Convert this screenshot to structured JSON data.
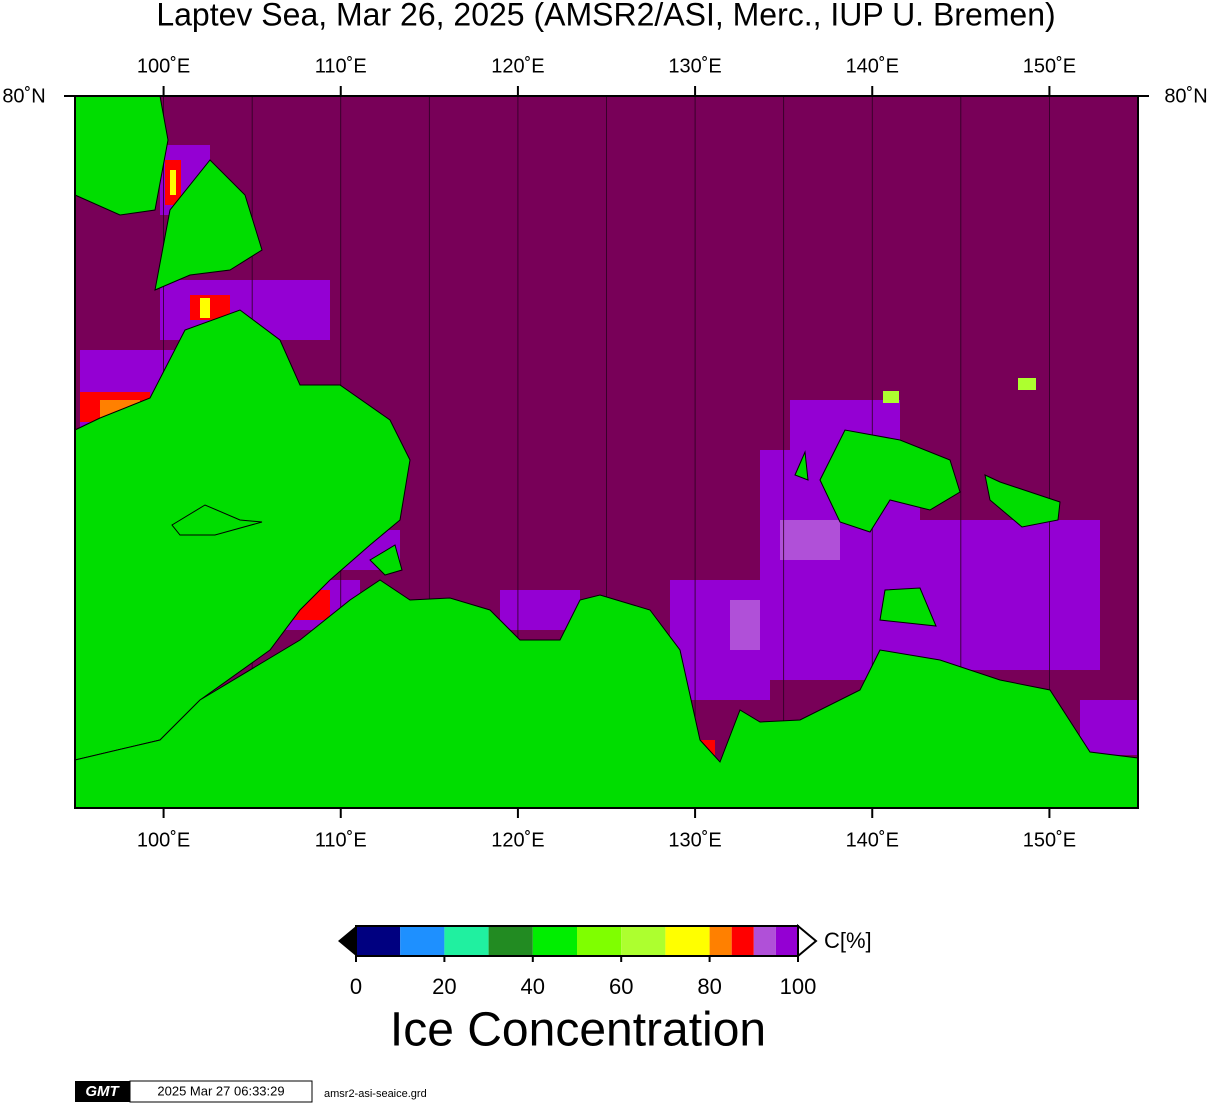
{
  "title": "Laptev Sea, Mar 26, 2025 (AMSR2/ASI, Merc., IUP U. Bremen)",
  "map": {
    "lonlim": [
      95,
      155
    ],
    "lon_ticks": [
      {
        "value": 100,
        "label": "100˚E"
      },
      {
        "value": 110,
        "label": "110˚E"
      },
      {
        "value": 120,
        "label": "120˚E"
      },
      {
        "value": 130,
        "label": "130˚E"
      },
      {
        "value": 140,
        "label": "140˚E"
      },
      {
        "value": 150,
        "label": "150˚E"
      }
    ],
    "gridlines": [
      100,
      105,
      110,
      115,
      120,
      125,
      130,
      135,
      140,
      145,
      150
    ],
    "lat_label": "80˚N"
  },
  "colorbar": {
    "unit": "C[%]",
    "lim": [
      0,
      100
    ],
    "ticks": [
      0,
      20,
      40,
      60,
      80,
      100
    ],
    "bounds": [
      0,
      10,
      20,
      30,
      40,
      50,
      60,
      70,
      80,
      85,
      90,
      95,
      100
    ],
    "colors": [
      "#000080",
      "#1e90ff",
      "#20f0a0",
      "#228b22",
      "#00ee00",
      "#7fff00",
      "#adff2f",
      "#ffff00",
      "#ff8000",
      "#ff0000",
      "#b050d8",
      "#9400d3"
    ]
  },
  "caption": "Ice Concentration",
  "footer": {
    "logo": "GMT",
    "timestamp": "2025 Mar 27 06:33:29",
    "file": "amsr2-asi-seaice.grd"
  }
}
